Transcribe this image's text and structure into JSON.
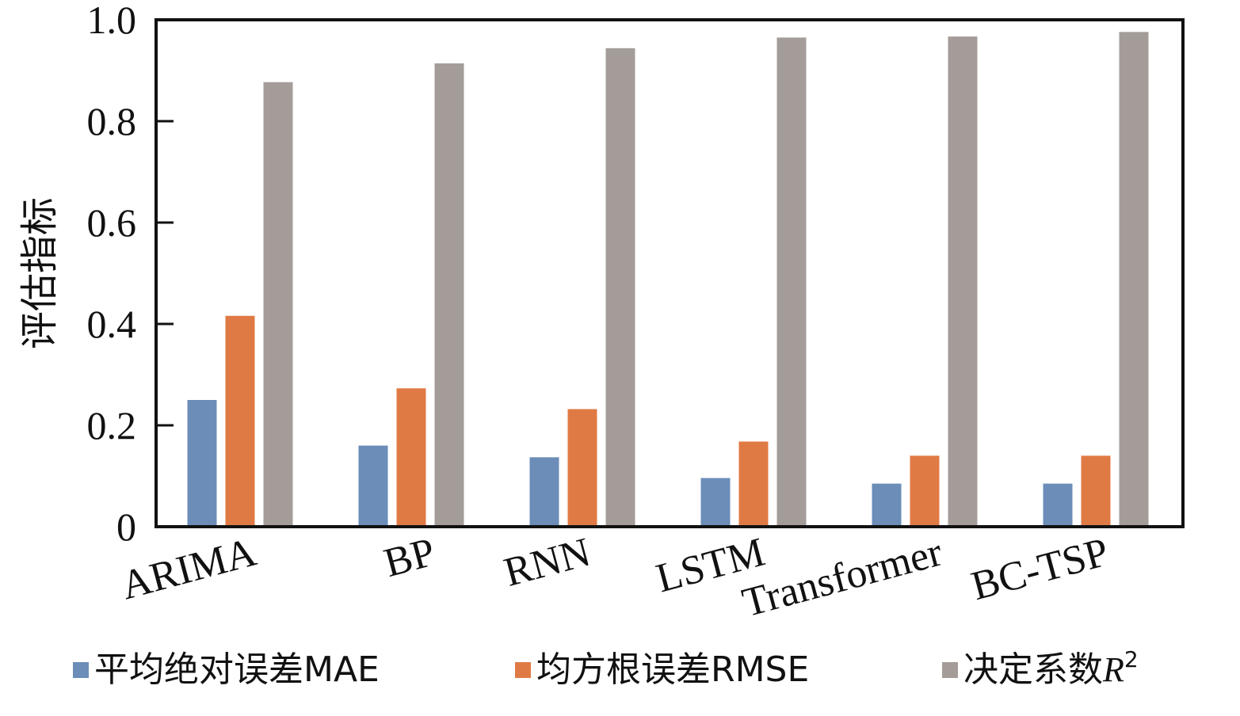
{
  "chart_data": {
    "type": "bar",
    "title": "",
    "xlabel": "",
    "ylabel": "评估指标",
    "ylim": [
      0,
      1.0
    ],
    "yticks": [
      "0",
      "0.2",
      "0.4",
      "0.6",
      "0.8",
      "1.0"
    ],
    "categories": [
      "ARIMA",
      "BP",
      "RNN",
      "LSTM",
      "Transformer",
      "BC-TSP"
    ],
    "series": [
      {
        "name": "平均绝对误差MAE",
        "color": "#6b8db8",
        "values": [
          0.25,
          0.16,
          0.137,
          0.096,
          0.085,
          0.085
        ]
      },
      {
        "name": "均方根误差RMSE",
        "color": "#e07a44",
        "values": [
          0.416,
          0.273,
          0.232,
          0.168,
          0.14,
          0.14
        ]
      },
      {
        "name": "决定系数",
        "name_italic": "R",
        "name_sup": "2",
        "color": "#a49c98",
        "values": [
          0.877,
          0.914,
          0.944,
          0.965,
          0.967,
          0.976
        ]
      }
    ],
    "grid": false,
    "legend_position": "bottom"
  }
}
